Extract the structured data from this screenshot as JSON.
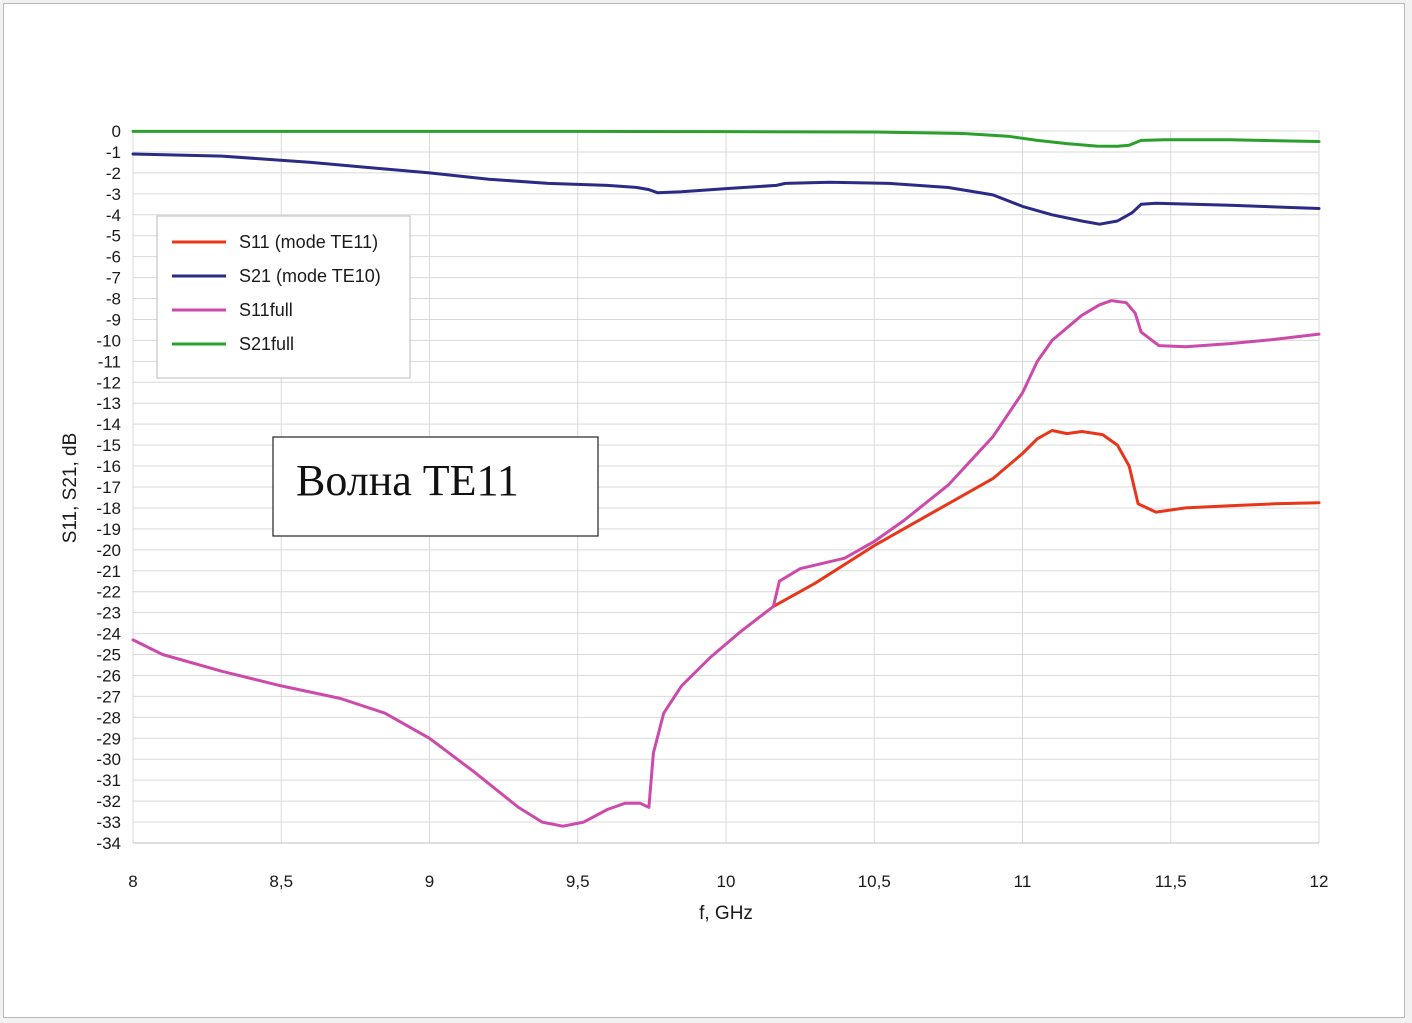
{
  "chart_data": {
    "type": "line",
    "xlabel": "f, GHz",
    "ylabel": "S11, S21, dB",
    "xlim": [
      8,
      12
    ],
    "ylim": [
      -34,
      0
    ],
    "x_ticks": [
      "8",
      "8,5",
      "9",
      "9,5",
      "10",
      "10,5",
      "11",
      "11,5",
      "12"
    ],
    "y_ticks": [
      "0",
      "-1",
      "-2",
      "-3",
      "-4",
      "-5",
      "-6",
      "-7",
      "-8",
      "-9",
      "-10",
      "-11",
      "-12",
      "-13",
      "-14",
      "-15",
      "-16",
      "-17",
      "-18",
      "-19",
      "-20",
      "-21",
      "-22",
      "-23",
      "-24",
      "-25",
      "-26",
      "-27",
      "-28",
      "-29",
      "-30",
      "-31",
      "-32",
      "-33",
      "-34"
    ],
    "grid": true,
    "legend_position": "top-left",
    "annotation": "Волна TE11",
    "series": [
      {
        "name": "S11 (mode TE11)",
        "color": "#e8361b",
        "points": [
          [
            10.16,
            -22.7
          ],
          [
            10.3,
            -21.6
          ],
          [
            10.5,
            -19.8
          ],
          [
            10.7,
            -18.2
          ],
          [
            10.9,
            -16.6
          ],
          [
            11.0,
            -15.4
          ],
          [
            11.05,
            -14.7
          ],
          [
            11.1,
            -14.3
          ],
          [
            11.15,
            -14.45
          ],
          [
            11.2,
            -14.35
          ],
          [
            11.27,
            -14.5
          ],
          [
            11.32,
            -15.0
          ],
          [
            11.36,
            -16.0
          ],
          [
            11.39,
            -17.8
          ],
          [
            11.45,
            -18.2
          ],
          [
            11.55,
            -18.0
          ],
          [
            11.7,
            -17.9
          ],
          [
            11.85,
            -17.8
          ],
          [
            12.0,
            -17.75
          ]
        ]
      },
      {
        "name": "S21 (mode TE10)",
        "color": "#2b2a84",
        "points": [
          [
            8.0,
            -1.1
          ],
          [
            8.3,
            -1.2
          ],
          [
            8.6,
            -1.5
          ],
          [
            9.0,
            -2.0
          ],
          [
            9.2,
            -2.3
          ],
          [
            9.4,
            -2.5
          ],
          [
            9.6,
            -2.6
          ],
          [
            9.7,
            -2.7
          ],
          [
            9.74,
            -2.8
          ],
          [
            9.77,
            -2.95
          ],
          [
            9.85,
            -2.9
          ],
          [
            10.0,
            -2.75
          ],
          [
            10.17,
            -2.6
          ],
          [
            10.2,
            -2.5
          ],
          [
            10.35,
            -2.45
          ],
          [
            10.55,
            -2.5
          ],
          [
            10.75,
            -2.7
          ],
          [
            10.9,
            -3.05
          ],
          [
            11.0,
            -3.6
          ],
          [
            11.1,
            -4.0
          ],
          [
            11.2,
            -4.3
          ],
          [
            11.26,
            -4.45
          ],
          [
            11.32,
            -4.3
          ],
          [
            11.37,
            -3.9
          ],
          [
            11.4,
            -3.5
          ],
          [
            11.45,
            -3.45
          ],
          [
            11.7,
            -3.55
          ],
          [
            12.0,
            -3.7
          ]
        ]
      },
      {
        "name": "S11full",
        "color": "#cc4aa9",
        "points": [
          [
            8.0,
            -24.3
          ],
          [
            8.1,
            -25.0
          ],
          [
            8.3,
            -25.8
          ],
          [
            8.5,
            -26.5
          ],
          [
            8.7,
            -27.1
          ],
          [
            8.85,
            -27.8
          ],
          [
            9.0,
            -29.0
          ],
          [
            9.15,
            -30.6
          ],
          [
            9.3,
            -32.3
          ],
          [
            9.38,
            -33.0
          ],
          [
            9.45,
            -33.2
          ],
          [
            9.52,
            -33.0
          ],
          [
            9.6,
            -32.4
          ],
          [
            9.66,
            -32.1
          ],
          [
            9.71,
            -32.1
          ],
          [
            9.74,
            -32.3
          ],
          [
            9.755,
            -29.7
          ],
          [
            9.79,
            -27.8
          ],
          [
            9.85,
            -26.5
          ],
          [
            9.95,
            -25.1
          ],
          [
            10.05,
            -23.9
          ],
          [
            10.16,
            -22.7
          ],
          [
            10.18,
            -21.5
          ],
          [
            10.25,
            -20.9
          ],
          [
            10.4,
            -20.4
          ],
          [
            10.5,
            -19.6
          ],
          [
            10.6,
            -18.6
          ],
          [
            10.75,
            -16.9
          ],
          [
            10.9,
            -14.6
          ],
          [
            11.0,
            -12.5
          ],
          [
            11.05,
            -11.0
          ],
          [
            11.1,
            -10.0
          ],
          [
            11.15,
            -9.4
          ],
          [
            11.2,
            -8.8
          ],
          [
            11.26,
            -8.3
          ],
          [
            11.3,
            -8.1
          ],
          [
            11.35,
            -8.2
          ],
          [
            11.38,
            -8.7
          ],
          [
            11.4,
            -9.6
          ],
          [
            11.46,
            -10.25
          ],
          [
            11.55,
            -10.3
          ],
          [
            11.7,
            -10.15
          ],
          [
            11.85,
            -9.95
          ],
          [
            12.0,
            -9.7
          ]
        ]
      },
      {
        "name": "S21full",
        "color": "#2ca02c",
        "points": [
          [
            8.0,
            -0.02
          ],
          [
            8.5,
            -0.02
          ],
          [
            9.0,
            -0.02
          ],
          [
            9.5,
            -0.02
          ],
          [
            10.0,
            -0.03
          ],
          [
            10.5,
            -0.05
          ],
          [
            10.8,
            -0.12
          ],
          [
            10.95,
            -0.25
          ],
          [
            11.05,
            -0.45
          ],
          [
            11.15,
            -0.6
          ],
          [
            11.25,
            -0.72
          ],
          [
            11.32,
            -0.73
          ],
          [
            11.36,
            -0.68
          ],
          [
            11.4,
            -0.45
          ],
          [
            11.48,
            -0.42
          ],
          [
            11.7,
            -0.42
          ],
          [
            12.0,
            -0.5
          ]
        ]
      }
    ]
  }
}
